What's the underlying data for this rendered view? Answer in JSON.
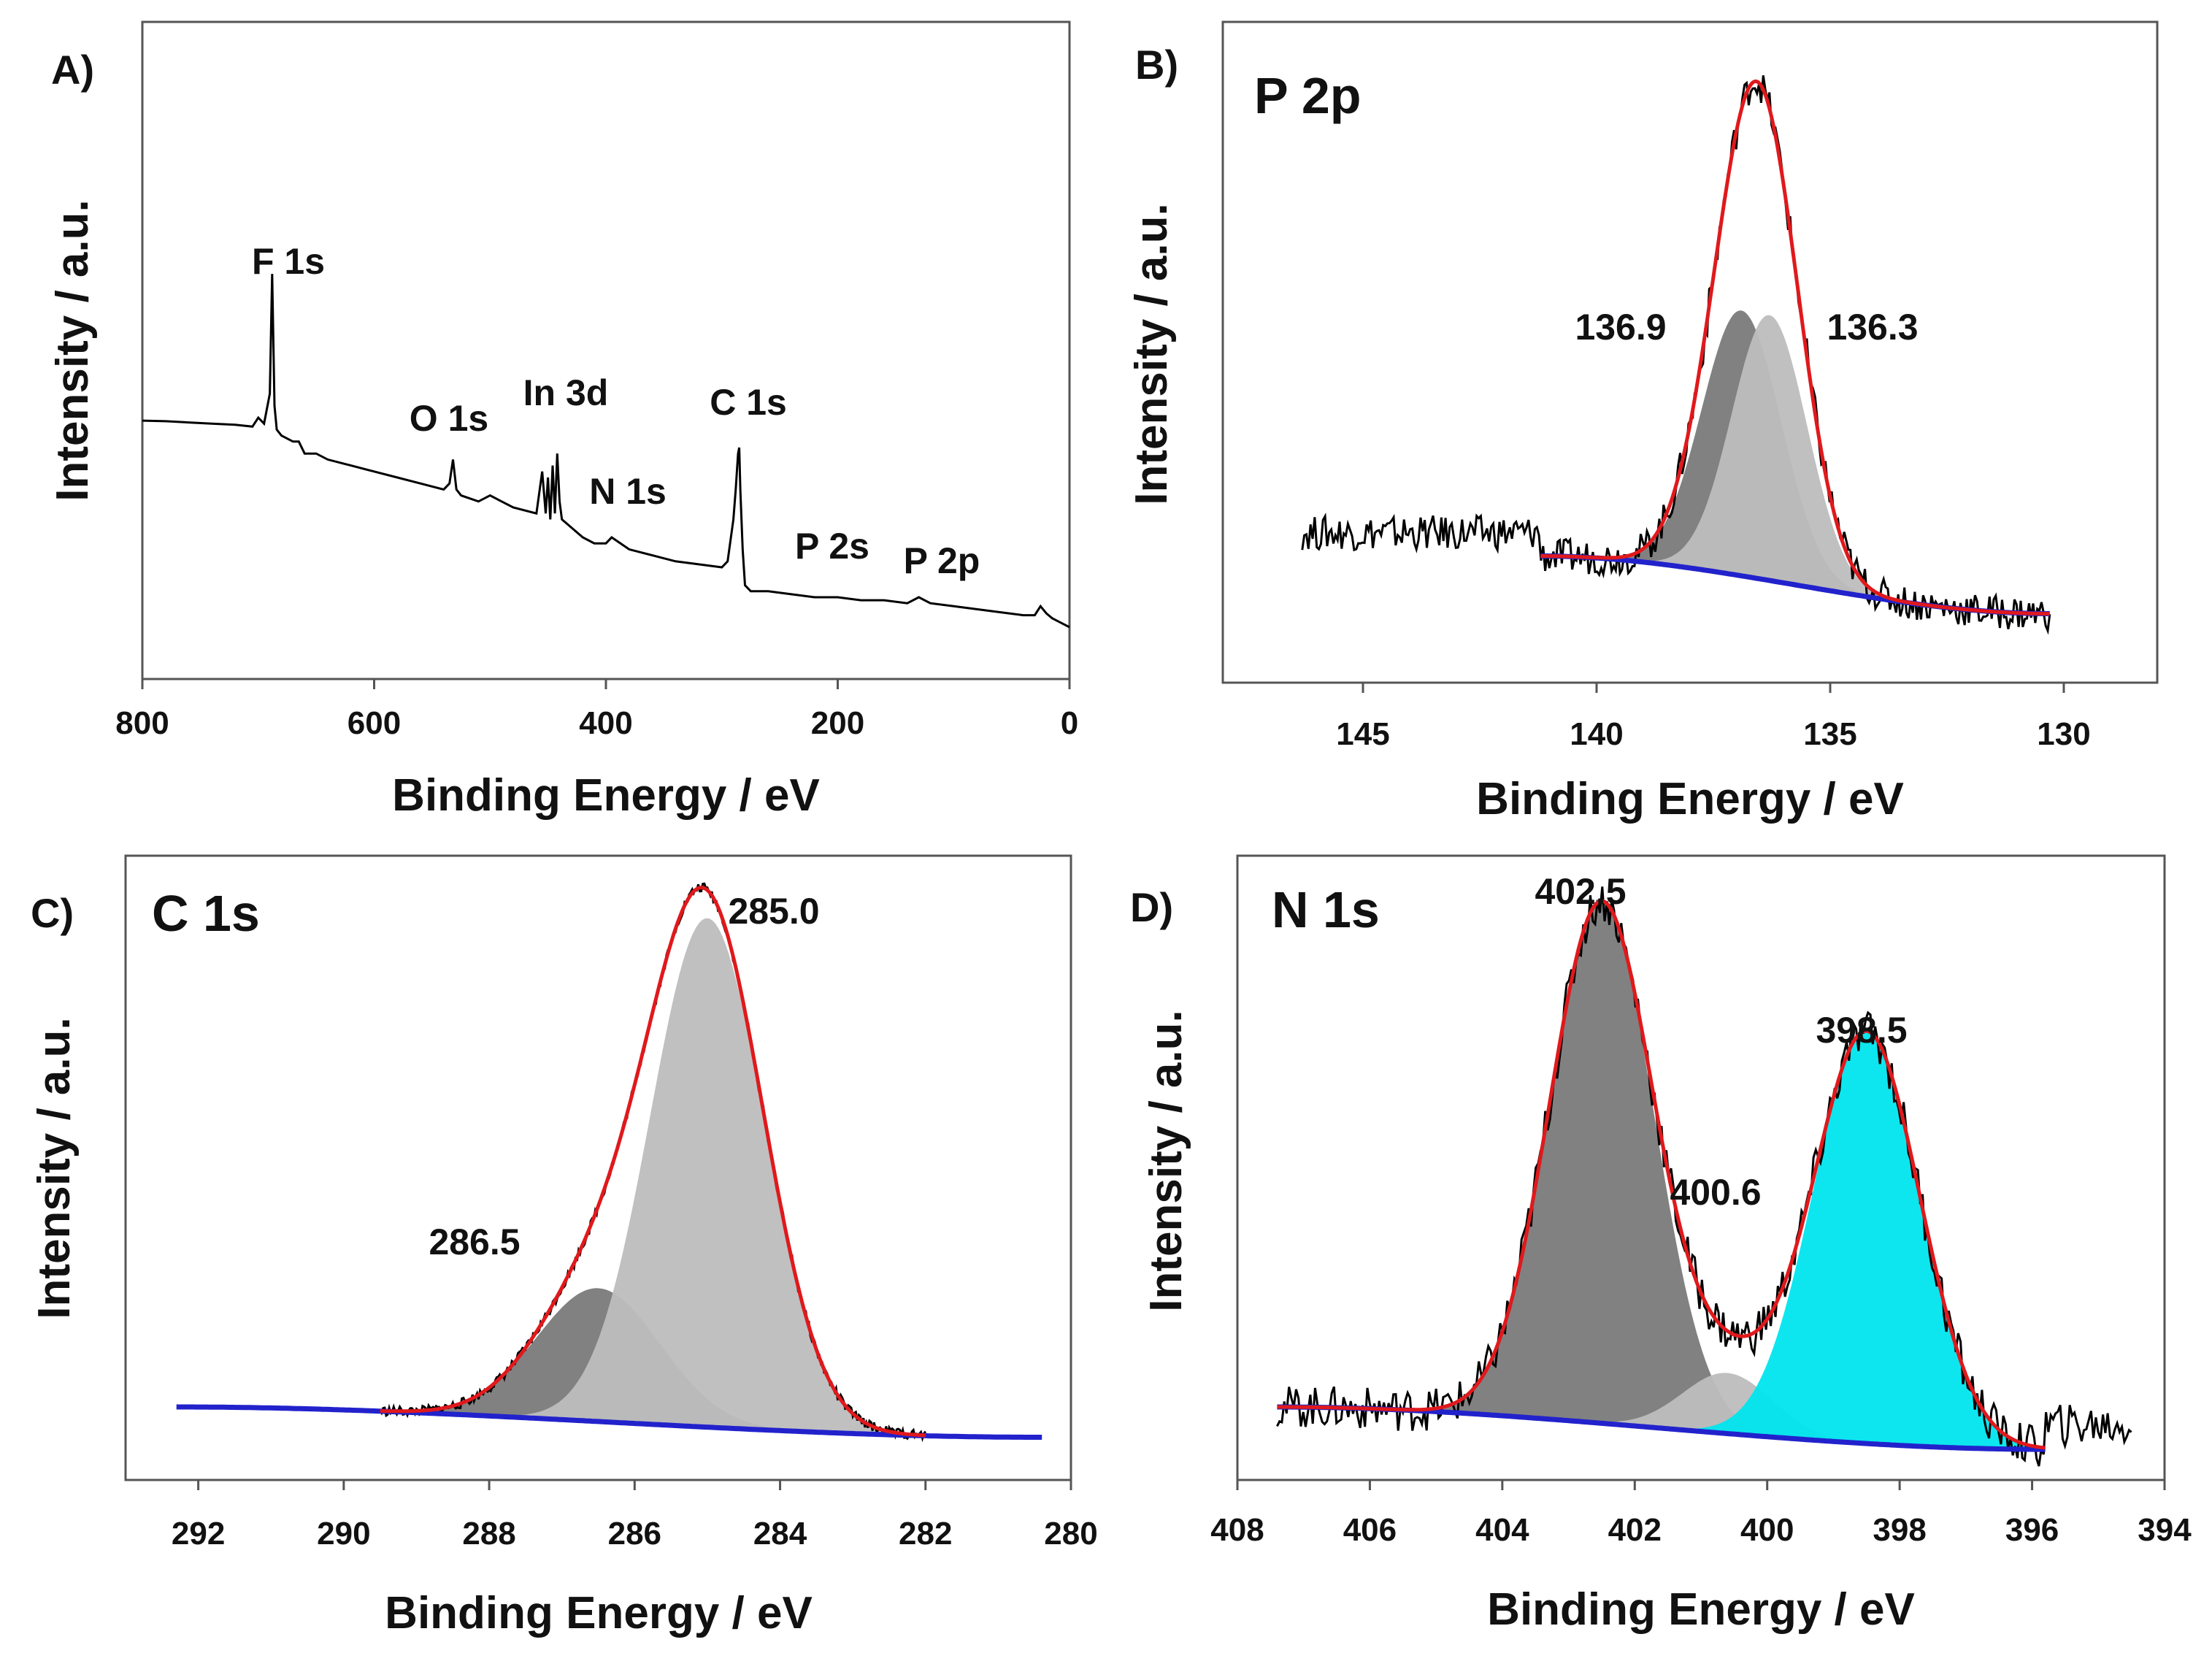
{
  "colors": {
    "raw": "#000000",
    "envelope": "#e0191c",
    "background": "#2222cc",
    "comp_dark": "#7a7a7a",
    "comp_light": "#bdbdbd",
    "comp_cyan": "#00e5ee"
  },
  "chart_data": [
    {
      "panel": "A)",
      "type": "line",
      "title": "",
      "xlabel": "Binding Energy / eV",
      "ylabel": "Intensity / a.u.",
      "xlim": [
        800,
        0
      ],
      "ylim": [
        0,
        100
      ],
      "xticks": [
        800,
        600,
        400,
        200,
        0
      ],
      "yticks_shown": false,
      "survey_peaks": [
        {
          "label": "F 1s",
          "x": 688
        },
        {
          "label": "O 1s",
          "x": 532
        },
        {
          "label": "In 3d",
          "x": 445
        },
        {
          "label": "N 1s",
          "x": 400
        },
        {
          "label": "C 1s",
          "x": 285
        },
        {
          "label": "P 2s",
          "x": 190
        },
        {
          "label": "P 2p",
          "x": 135
        }
      ],
      "series": [
        {
          "name": "survey",
          "x": [
            800,
            780,
            760,
            740,
            720,
            705,
            700,
            695,
            690,
            688,
            686,
            684,
            680,
            670,
            665,
            660,
            650,
            640,
            620,
            600,
            580,
            560,
            540,
            535,
            532,
            529,
            525,
            510,
            500,
            490,
            480,
            460,
            455,
            452,
            450,
            448,
            446,
            444,
            442,
            440,
            438,
            420,
            410,
            400,
            395,
            380,
            360,
            340,
            320,
            300,
            295,
            290,
            288,
            286,
            285,
            284,
            282,
            280,
            275,
            260,
            240,
            220,
            200,
            180,
            160,
            140,
            130,
            120,
            100,
            80,
            60,
            40,
            30,
            25,
            20,
            15,
            10,
            5,
            0
          ],
          "y": [
            39.5,
            39.4,
            39.2,
            39.0,
            38.8,
            38.5,
            40,
            39,
            44,
            64,
            42,
            38,
            37,
            36,
            36,
            34,
            34,
            33,
            32,
            31,
            30,
            29,
            28,
            29,
            33,
            28,
            27,
            26,
            27,
            26,
            25,
            24,
            31,
            24,
            30,
            23,
            32,
            24,
            34,
            26,
            23,
            20,
            19,
            19,
            20,
            18,
            17,
            16,
            15.5,
            15,
            16,
            23,
            28,
            34,
            35,
            28,
            18,
            12,
            11,
            11,
            10.5,
            10,
            10,
            9.5,
            9.5,
            9,
            10,
            9,
            8.5,
            8,
            7.5,
            7,
            7,
            8.5,
            7.3,
            6.5,
            6,
            5.5,
            5
          ]
        }
      ]
    },
    {
      "panel": "B)",
      "type": "line",
      "title": "P 2p",
      "xlabel": "Binding Energy / eV",
      "ylabel": "Intensity / a.u.",
      "xlim": [
        148,
        128
      ],
      "ylim": [
        0,
        100
      ],
      "xticks": [
        145,
        140,
        135,
        130
      ],
      "yticks_shown": false,
      "peak_labels": [
        {
          "label": "136.9",
          "x": 136.9
        },
        {
          "label": "136.3",
          "x": 136.3
        }
      ],
      "components": [
        {
          "name": "136.9",
          "center": 136.9,
          "amplitude": 46,
          "fwhm": 2.0,
          "color": "comp_dark"
        },
        {
          "name": "136.3",
          "center": 136.3,
          "amplitude": 46,
          "fwhm": 1.9,
          "color": "comp_light"
        }
      ],
      "background": {
        "high_be": 141.2,
        "low_be": 130.3,
        "y_high": 15,
        "y_low": 5
      },
      "envelope": {
        "x_range": [
          141.2,
          130.3
        ]
      },
      "raw": {
        "x_range": [
          146.3,
          130.3
        ],
        "noise": 3.0
      }
    },
    {
      "panel": "C)",
      "type": "line",
      "title": "C 1s",
      "xlabel": "Binding Energy / eV",
      "ylabel": "Intensity / a.u.",
      "xlim": [
        293,
        280
      ],
      "ylim": [
        0,
        100
      ],
      "xticks": [
        292,
        290,
        288,
        286,
        284,
        282,
        280
      ],
      "yticks_shown": false,
      "peak_labels": [
        {
          "label": "286.5",
          "x": 286.5
        },
        {
          "label": "285.0",
          "x": 285.0
        }
      ],
      "components": [
        {
          "name": "286.5",
          "center": 286.5,
          "amplitude": 22,
          "fwhm": 2.0,
          "color": "comp_dark"
        },
        {
          "name": "285.0",
          "center": 285.0,
          "amplitude": 84,
          "fwhm": 1.85,
          "color": "comp_light"
        }
      ],
      "background": {
        "high_be": 292.3,
        "low_be": 280.4,
        "y_high": 10,
        "y_low": 5
      },
      "envelope": {
        "x_range": [
          289.5,
          282.0
        ]
      },
      "raw": {
        "x_range": [
          289.5,
          282.0
        ],
        "noise": 0.8
      }
    },
    {
      "panel": "D)",
      "type": "line",
      "title": "N 1s",
      "xlabel": "Binding Energy / eV",
      "ylabel": "Intensity / a.u.",
      "xlim": [
        408,
        394
      ],
      "ylim": [
        0,
        100
      ],
      "xticks": [
        408,
        406,
        404,
        402,
        400,
        398,
        396,
        394
      ],
      "yticks_shown": false,
      "peak_labels": [
        {
          "label": "402.5",
          "x": 402.5
        },
        {
          "label": "400.6",
          "x": 400.6
        },
        {
          "label": "398.5",
          "x": 398.5
        }
      ],
      "components": [
        {
          "name": "402.5",
          "center": 402.5,
          "amplitude": 86,
          "fwhm": 1.85,
          "color": "comp_dark"
        },
        {
          "name": "400.6",
          "center": 400.6,
          "amplitude": 10,
          "fwhm": 1.6,
          "color": "comp_light"
        },
        {
          "name": "398.5",
          "center": 398.5,
          "amplitude": 68,
          "fwhm": 1.9,
          "color": "comp_cyan"
        }
      ],
      "background": {
        "high_be": 407.4,
        "low_be": 395.8,
        "y_high": 10,
        "y_low": 3
      },
      "envelope": {
        "x_range": [
          407.4,
          395.8
        ]
      },
      "raw": {
        "x_range": [
          407.4,
          394.5
        ],
        "noise": 3.5
      }
    }
  ]
}
